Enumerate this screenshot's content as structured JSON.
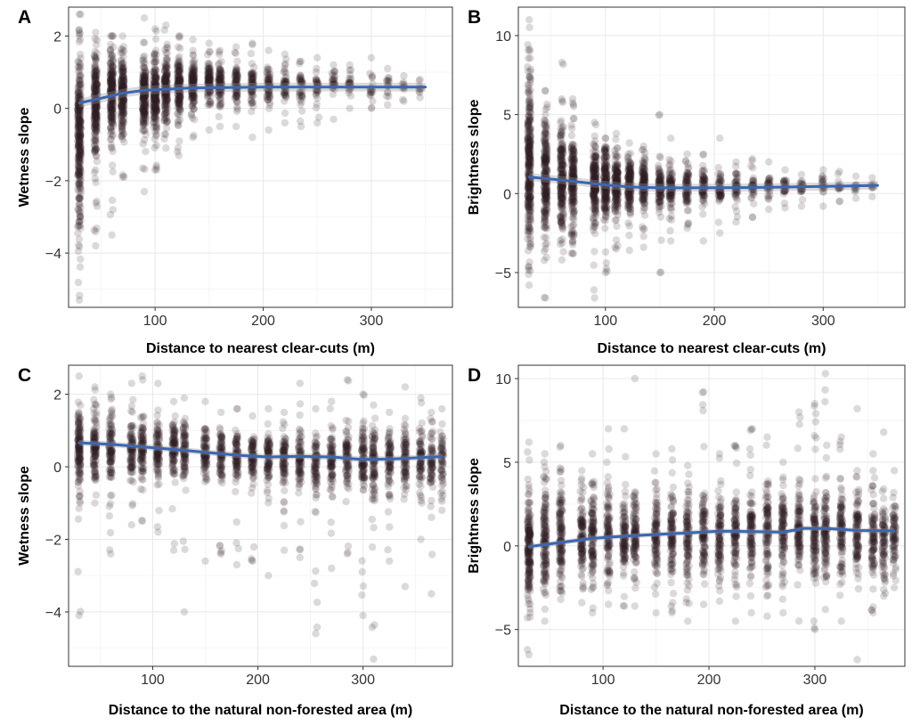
{
  "chart_data": [
    {
      "panel": "A",
      "type": "scatter",
      "xlabel": "Distance to nearest clear-cuts (m)",
      "ylabel": "Wetness slope",
      "xlim": [
        20,
        375
      ],
      "ylim": [
        -5.5,
        2.8
      ],
      "xticks": [
        100,
        200,
        300
      ],
      "yticks": [
        2,
        0,
        -2,
        -4
      ],
      "xtick_labels": [
        "100",
        "200",
        "300"
      ],
      "ytick_labels": [
        "2",
        "0",
        "−2",
        "−4"
      ],
      "minor_x": [
        50,
        150,
        250,
        350
      ],
      "minor_y": [
        1,
        -1,
        -3,
        -5
      ],
      "columns": [
        {
          "x": 30,
          "lo": -5.3,
          "hi": 2.6,
          "core_lo": -3.2,
          "core_hi": 1.6,
          "n": 320
        },
        {
          "x": 45,
          "lo": -3.8,
          "hi": 2.1,
          "core_lo": -1.4,
          "core_hi": 1.5,
          "n": 240
        },
        {
          "x": 60,
          "lo": -3.5,
          "hi": 2.0,
          "core_lo": -0.8,
          "core_hi": 1.5,
          "n": 220
        },
        {
          "x": 70,
          "lo": -1.9,
          "hi": 2.0,
          "core_lo": -0.6,
          "core_hi": 1.5,
          "n": 200
        },
        {
          "x": 90,
          "lo": -2.3,
          "hi": 2.5,
          "core_lo": -0.6,
          "core_hi": 1.3,
          "n": 210
        },
        {
          "x": 100,
          "lo": -1.7,
          "hi": 2.2,
          "core_lo": -0.5,
          "core_hi": 1.3,
          "n": 200
        },
        {
          "x": 110,
          "lo": -1.1,
          "hi": 2.3,
          "core_lo": -0.3,
          "core_hi": 1.4,
          "n": 170
        },
        {
          "x": 122,
          "lo": -1.3,
          "hi": 2.0,
          "core_lo": -0.2,
          "core_hi": 1.4,
          "n": 160
        },
        {
          "x": 135,
          "lo": -0.8,
          "hi": 1.9,
          "core_lo": 0.0,
          "core_hi": 1.3,
          "n": 130
        },
        {
          "x": 150,
          "lo": -0.6,
          "hi": 1.8,
          "core_lo": 0.1,
          "core_hi": 1.3,
          "n": 110
        },
        {
          "x": 160,
          "lo": -0.5,
          "hi": 1.6,
          "core_lo": 0.1,
          "core_hi": 1.3,
          "n": 100
        },
        {
          "x": 175,
          "lo": -0.5,
          "hi": 1.7,
          "core_lo": 0.1,
          "core_hi": 1.2,
          "n": 80
        },
        {
          "x": 190,
          "lo": -0.8,
          "hi": 1.8,
          "core_lo": 0.1,
          "core_hi": 1.2,
          "n": 70
        },
        {
          "x": 205,
          "lo": -0.6,
          "hi": 1.6,
          "core_lo": 0.1,
          "core_hi": 1.2,
          "n": 60
        },
        {
          "x": 220,
          "lo": -0.4,
          "hi": 1.5,
          "core_lo": 0.2,
          "core_hi": 1.1,
          "n": 50
        },
        {
          "x": 235,
          "lo": -0.5,
          "hi": 1.3,
          "core_lo": 0.2,
          "core_hi": 1.1,
          "n": 40
        },
        {
          "x": 250,
          "lo": -0.4,
          "hi": 1.4,
          "core_lo": 0.2,
          "core_hi": 1.1,
          "n": 35
        },
        {
          "x": 265,
          "lo": -0.3,
          "hi": 1.2,
          "core_lo": 0.3,
          "core_hi": 1.0,
          "n": 30
        },
        {
          "x": 280,
          "lo": 0.0,
          "hi": 1.2,
          "core_lo": 0.3,
          "core_hi": 1.0,
          "n": 25
        },
        {
          "x": 300,
          "lo": 0.0,
          "hi": 1.4,
          "core_lo": 0.3,
          "core_hi": 1.0,
          "n": 20
        },
        {
          "x": 315,
          "lo": 0.1,
          "hi": 1.1,
          "core_lo": 0.3,
          "core_hi": 0.9,
          "n": 15
        },
        {
          "x": 330,
          "lo": 0.2,
          "hi": 0.9,
          "core_lo": 0.4,
          "core_hi": 0.8,
          "n": 10
        },
        {
          "x": 345,
          "lo": 0.3,
          "hi": 0.8,
          "core_lo": 0.4,
          "core_hi": 0.7,
          "n": 8
        }
      ],
      "trend": {
        "x": [
          30,
          50,
          70,
          90,
          110,
          130,
          150,
          175,
          200,
          225,
          250,
          275,
          300,
          325,
          350
        ],
        "y": [
          0.15,
          0.28,
          0.42,
          0.5,
          0.53,
          0.56,
          0.57,
          0.58,
          0.59,
          0.59,
          0.59,
          0.59,
          0.59,
          0.59,
          0.59
        ],
        "band": 0.12
      }
    },
    {
      "panel": "B",
      "type": "scatter",
      "xlabel": "Distance to nearest clear-cuts (m)",
      "ylabel": "Brightness slope",
      "xlim": [
        20,
        375
      ],
      "ylim": [
        -7.2,
        11.8
      ],
      "xticks": [
        100,
        200,
        300
      ],
      "yticks": [
        10,
        5,
        0,
        -5
      ],
      "xtick_labels": [
        "100",
        "200",
        "300"
      ],
      "ytick_labels": [
        "10",
        "5",
        "0",
        "−5"
      ],
      "minor_x": [
        50,
        150,
        250,
        350
      ],
      "minor_y": [
        7.5,
        2.5,
        -2.5
      ],
      "columns": [
        {
          "x": 30,
          "lo": -5.8,
          "hi": 11.0,
          "core_lo": -3.5,
          "core_hi": 7.0,
          "n": 320
        },
        {
          "x": 45,
          "lo": -6.6,
          "hi": 6.5,
          "core_lo": -2.5,
          "core_hi": 4.5,
          "n": 240
        },
        {
          "x": 60,
          "lo": -4.2,
          "hi": 8.3,
          "core_lo": -2.2,
          "core_hi": 4.0,
          "n": 220
        },
        {
          "x": 70,
          "lo": -3.8,
          "hi": 6.0,
          "core_lo": -2.0,
          "core_hi": 3.5,
          "n": 200
        },
        {
          "x": 90,
          "lo": -6.6,
          "hi": 4.5,
          "core_lo": -1.8,
          "core_hi": 3.0,
          "n": 210
        },
        {
          "x": 100,
          "lo": -5.0,
          "hi": 3.5,
          "core_lo": -1.5,
          "core_hi": 2.8,
          "n": 200
        },
        {
          "x": 110,
          "lo": -3.5,
          "hi": 3.8,
          "core_lo": -1.2,
          "core_hi": 2.5,
          "n": 170
        },
        {
          "x": 122,
          "lo": -3.6,
          "hi": 3.2,
          "core_lo": -1.0,
          "core_hi": 2.2,
          "n": 160
        },
        {
          "x": 135,
          "lo": -3.4,
          "hi": 3.0,
          "core_lo": -0.9,
          "core_hi": 2.0,
          "n": 130
        },
        {
          "x": 150,
          "lo": -5.0,
          "hi": 5.0,
          "core_lo": -0.8,
          "core_hi": 2.0,
          "n": 110
        },
        {
          "x": 160,
          "lo": -3.0,
          "hi": 3.5,
          "core_lo": -0.8,
          "core_hi": 1.8,
          "n": 100
        },
        {
          "x": 175,
          "lo": -2.2,
          "hi": 2.5,
          "core_lo": -0.7,
          "core_hi": 1.6,
          "n": 80
        },
        {
          "x": 190,
          "lo": -3.0,
          "hi": 2.5,
          "core_lo": -0.6,
          "core_hi": 1.5,
          "n": 70
        },
        {
          "x": 205,
          "lo": -2.5,
          "hi": 3.5,
          "core_lo": -0.5,
          "core_hi": 1.3,
          "n": 60
        },
        {
          "x": 220,
          "lo": -1.8,
          "hi": 2.0,
          "core_lo": -0.4,
          "core_hi": 1.2,
          "n": 50
        },
        {
          "x": 235,
          "lo": -1.5,
          "hi": 2.2,
          "core_lo": -0.3,
          "core_hi": 1.2,
          "n": 40
        },
        {
          "x": 250,
          "lo": -1.0,
          "hi": 2.0,
          "core_lo": -0.2,
          "core_hi": 1.1,
          "n": 35
        },
        {
          "x": 265,
          "lo": -0.9,
          "hi": 1.5,
          "core_lo": 0.0,
          "core_hi": 1.0,
          "n": 30
        },
        {
          "x": 280,
          "lo": -0.8,
          "hi": 1.2,
          "core_lo": 0.0,
          "core_hi": 0.9,
          "n": 25
        },
        {
          "x": 300,
          "lo": -0.8,
          "hi": 1.5,
          "core_lo": 0.0,
          "core_hi": 0.9,
          "n": 20
        },
        {
          "x": 315,
          "lo": -0.5,
          "hi": 1.4,
          "core_lo": 0.1,
          "core_hi": 0.8,
          "n": 15
        },
        {
          "x": 330,
          "lo": -0.3,
          "hi": 1.1,
          "core_lo": 0.1,
          "core_hi": 0.7,
          "n": 10
        },
        {
          "x": 345,
          "lo": -0.2,
          "hi": 1.0,
          "core_lo": 0.2,
          "core_hi": 0.7,
          "n": 8
        }
      ],
      "trend": {
        "x": [
          30,
          50,
          70,
          90,
          110,
          130,
          150,
          175,
          200,
          225,
          250,
          275,
          300,
          325,
          350
        ],
        "y": [
          1.05,
          0.92,
          0.78,
          0.62,
          0.48,
          0.4,
          0.37,
          0.36,
          0.37,
          0.38,
          0.4,
          0.42,
          0.45,
          0.48,
          0.52
        ],
        "band": 0.25
      }
    },
    {
      "panel": "C",
      "type": "scatter",
      "xlabel": "Distance to the natural non-forested area (m)",
      "ylabel": "Wetness slope",
      "xlim": [
        20,
        385
      ],
      "ylim": [
        -5.5,
        2.8
      ],
      "xticks": [
        100,
        200,
        300
      ],
      "yticks": [
        2,
        0,
        -2,
        -4
      ],
      "xtick_labels": [
        "100",
        "200",
        "300"
      ],
      "ytick_labels": [
        "2",
        "0",
        "−2",
        "−4"
      ],
      "minor_x": [
        50,
        150,
        250,
        350
      ],
      "minor_y": [
        1,
        -1,
        -3,
        -5
      ],
      "columns": [
        {
          "x": 30,
          "lo": -4.1,
          "hi": 2.5,
          "core_lo": -0.6,
          "core_hi": 1.6,
          "n": 150
        },
        {
          "x": 45,
          "lo": -1.0,
          "hi": 2.2,
          "core_lo": -0.4,
          "core_hi": 1.5,
          "n": 120
        },
        {
          "x": 60,
          "lo": -2.4,
          "hi": 2.0,
          "core_lo": -0.4,
          "core_hi": 1.4,
          "n": 110
        },
        {
          "x": 80,
          "lo": -1.6,
          "hi": 2.3,
          "core_lo": -0.3,
          "core_hi": 1.3,
          "n": 100
        },
        {
          "x": 90,
          "lo": -1.5,
          "hi": 2.5,
          "core_lo": -0.3,
          "core_hi": 1.3,
          "n": 100
        },
        {
          "x": 105,
          "lo": -1.8,
          "hi": 2.3,
          "core_lo": -0.3,
          "core_hi": 1.2,
          "n": 100
        },
        {
          "x": 120,
          "lo": -2.3,
          "hi": 1.8,
          "core_lo": -0.3,
          "core_hi": 1.2,
          "n": 100
        },
        {
          "x": 130,
          "lo": -4.0,
          "hi": 1.9,
          "core_lo": -0.3,
          "core_hi": 1.2,
          "n": 90
        },
        {
          "x": 150,
          "lo": -2.6,
          "hi": 1.8,
          "core_lo": -0.4,
          "core_hi": 1.1,
          "n": 90
        },
        {
          "x": 165,
          "lo": -2.4,
          "hi": 1.5,
          "core_lo": -0.4,
          "core_hi": 1.1,
          "n": 90
        },
        {
          "x": 180,
          "lo": -2.7,
          "hi": 1.6,
          "core_lo": -0.4,
          "core_hi": 1.0,
          "n": 90
        },
        {
          "x": 195,
          "lo": -2.6,
          "hi": 1.4,
          "core_lo": -0.5,
          "core_hi": 1.0,
          "n": 90
        },
        {
          "x": 210,
          "lo": -3.0,
          "hi": 1.6,
          "core_lo": -0.5,
          "core_hi": 1.0,
          "n": 90
        },
        {
          "x": 225,
          "lo": -2.3,
          "hi": 1.5,
          "core_lo": -0.5,
          "core_hi": 1.0,
          "n": 90
        },
        {
          "x": 240,
          "lo": -2.5,
          "hi": 2.3,
          "core_lo": -0.5,
          "core_hi": 1.0,
          "n": 90
        },
        {
          "x": 255,
          "lo": -4.6,
          "hi": 1.6,
          "core_lo": -0.6,
          "core_hi": 1.0,
          "n": 90
        },
        {
          "x": 270,
          "lo": -2.8,
          "hi": 1.8,
          "core_lo": -0.6,
          "core_hi": 1.0,
          "n": 90
        },
        {
          "x": 285,
          "lo": -2.4,
          "hi": 2.4,
          "core_lo": -0.6,
          "core_hi": 1.0,
          "n": 90
        },
        {
          "x": 300,
          "lo": -4.1,
          "hi": 2.0,
          "core_lo": -0.6,
          "core_hi": 1.0,
          "n": 100
        },
        {
          "x": 310,
          "lo": -5.3,
          "hi": 1.7,
          "core_lo": -0.7,
          "core_hi": 1.0,
          "n": 100
        },
        {
          "x": 325,
          "lo": -2.6,
          "hi": 1.5,
          "core_lo": -0.6,
          "core_hi": 1.0,
          "n": 90
        },
        {
          "x": 340,
          "lo": -3.3,
          "hi": 2.2,
          "core_lo": -0.6,
          "core_hi": 1.0,
          "n": 90
        },
        {
          "x": 355,
          "lo": -2.0,
          "hi": 1.9,
          "core_lo": -0.6,
          "core_hi": 1.0,
          "n": 80
        },
        {
          "x": 365,
          "lo": -3.5,
          "hi": 1.5,
          "core_lo": -0.6,
          "core_hi": 1.0,
          "n": 70
        },
        {
          "x": 375,
          "lo": -1.2,
          "hi": 1.6,
          "core_lo": -0.5,
          "core_hi": 1.0,
          "n": 60
        }
      ],
      "trend": {
        "x": [
          30,
          60,
          90,
          120,
          150,
          180,
          210,
          240,
          270,
          300,
          330,
          360,
          375
        ],
        "y": [
          0.66,
          0.62,
          0.55,
          0.48,
          0.4,
          0.32,
          0.27,
          0.29,
          0.27,
          0.2,
          0.22,
          0.26,
          0.28
        ],
        "band": 0.08
      }
    },
    {
      "panel": "D",
      "type": "scatter",
      "xlabel": "Distance to the natural non-forested area (m)",
      "ylabel": "Brightness slope",
      "xlim": [
        20,
        385
      ],
      "ylim": [
        -7.2,
        10.8
      ],
      "xticks": [
        100,
        200,
        300
      ],
      "yticks": [
        10,
        5,
        0,
        -5
      ],
      "xtick_labels": [
        "100",
        "200",
        "300"
      ],
      "ytick_labels": [
        "10",
        "5",
        "0",
        "−5"
      ],
      "minor_x": [
        50,
        150,
        250,
        350
      ],
      "minor_y": [
        7.5,
        2.5,
        -2.5
      ],
      "columns": [
        {
          "x": 30,
          "lo": -6.5,
          "hi": 6.2,
          "core_lo": -3.0,
          "core_hi": 3.0,
          "n": 200
        },
        {
          "x": 45,
          "lo": -4.5,
          "hi": 5.5,
          "core_lo": -2.5,
          "core_hi": 3.2,
          "n": 150
        },
        {
          "x": 60,
          "lo": -3.2,
          "hi": 6.0,
          "core_lo": -2.2,
          "core_hi": 3.3,
          "n": 140
        },
        {
          "x": 80,
          "lo": -3.4,
          "hi": 4.5,
          "core_lo": -2.0,
          "core_hi": 3.0,
          "n": 120
        },
        {
          "x": 90,
          "lo": -4.0,
          "hi": 5.5,
          "core_lo": -2.0,
          "core_hi": 3.0,
          "n": 120
        },
        {
          "x": 105,
          "lo": -3.5,
          "hi": 7.0,
          "core_lo": -1.8,
          "core_hi": 3.0,
          "n": 110
        },
        {
          "x": 120,
          "lo": -3.6,
          "hi": 7.0,
          "core_lo": -1.8,
          "core_hi": 3.0,
          "n": 110
        },
        {
          "x": 130,
          "lo": -3.6,
          "hi": 10.0,
          "core_lo": -1.8,
          "core_hi": 3.0,
          "n": 110
        },
        {
          "x": 150,
          "lo": -4.0,
          "hi": 5.5,
          "core_lo": -1.8,
          "core_hi": 3.0,
          "n": 110
        },
        {
          "x": 165,
          "lo": -4.0,
          "hi": 5.8,
          "core_lo": -1.8,
          "core_hi": 3.2,
          "n": 110
        },
        {
          "x": 180,
          "lo": -4.5,
          "hi": 4.8,
          "core_lo": -1.8,
          "core_hi": 3.2,
          "n": 110
        },
        {
          "x": 195,
          "lo": -3.5,
          "hi": 9.2,
          "core_lo": -1.8,
          "core_hi": 3.3,
          "n": 110
        },
        {
          "x": 210,
          "lo": -3.3,
          "hi": 5.5,
          "core_lo": -1.8,
          "core_hi": 3.3,
          "n": 110
        },
        {
          "x": 225,
          "lo": -4.5,
          "hi": 6.0,
          "core_lo": -1.8,
          "core_hi": 3.3,
          "n": 110
        },
        {
          "x": 240,
          "lo": -4.0,
          "hi": 7.0,
          "core_lo": -1.8,
          "core_hi": 3.3,
          "n": 110
        },
        {
          "x": 255,
          "lo": -4.2,
          "hi": 6.5,
          "core_lo": -1.8,
          "core_hi": 3.3,
          "n": 110
        },
        {
          "x": 270,
          "lo": -4.0,
          "hi": 5.0,
          "core_lo": -1.8,
          "core_hi": 3.3,
          "n": 110
        },
        {
          "x": 285,
          "lo": -4.5,
          "hi": 8.0,
          "core_lo": -1.8,
          "core_hi": 3.4,
          "n": 120
        },
        {
          "x": 300,
          "lo": -5.0,
          "hi": 8.5,
          "core_lo": -1.8,
          "core_hi": 3.4,
          "n": 120
        },
        {
          "x": 310,
          "lo": -3.8,
          "hi": 10.3,
          "core_lo": -1.8,
          "core_hi": 3.4,
          "n": 120
        },
        {
          "x": 325,
          "lo": -4.5,
          "hi": 6.5,
          "core_lo": -1.8,
          "core_hi": 3.3,
          "n": 110
        },
        {
          "x": 340,
          "lo": -6.8,
          "hi": 8.2,
          "core_lo": -1.8,
          "core_hi": 3.3,
          "n": 110
        },
        {
          "x": 355,
          "lo": -4.0,
          "hi": 5.5,
          "core_lo": -1.8,
          "core_hi": 3.2,
          "n": 100
        },
        {
          "x": 365,
          "lo": -3.0,
          "hi": 6.8,
          "core_lo": -1.8,
          "core_hi": 3.0,
          "n": 90
        },
        {
          "x": 375,
          "lo": -2.5,
          "hi": 4.5,
          "core_lo": -1.5,
          "core_hi": 3.0,
          "n": 80
        }
      ],
      "trend": {
        "x": [
          30,
          60,
          90,
          120,
          150,
          180,
          210,
          240,
          270,
          290,
          310,
          340,
          375
        ],
        "y": [
          -0.05,
          0.2,
          0.45,
          0.58,
          0.68,
          0.78,
          0.88,
          0.85,
          0.82,
          1.05,
          1.05,
          0.92,
          0.9
        ],
        "band": 0.15
      }
    }
  ]
}
